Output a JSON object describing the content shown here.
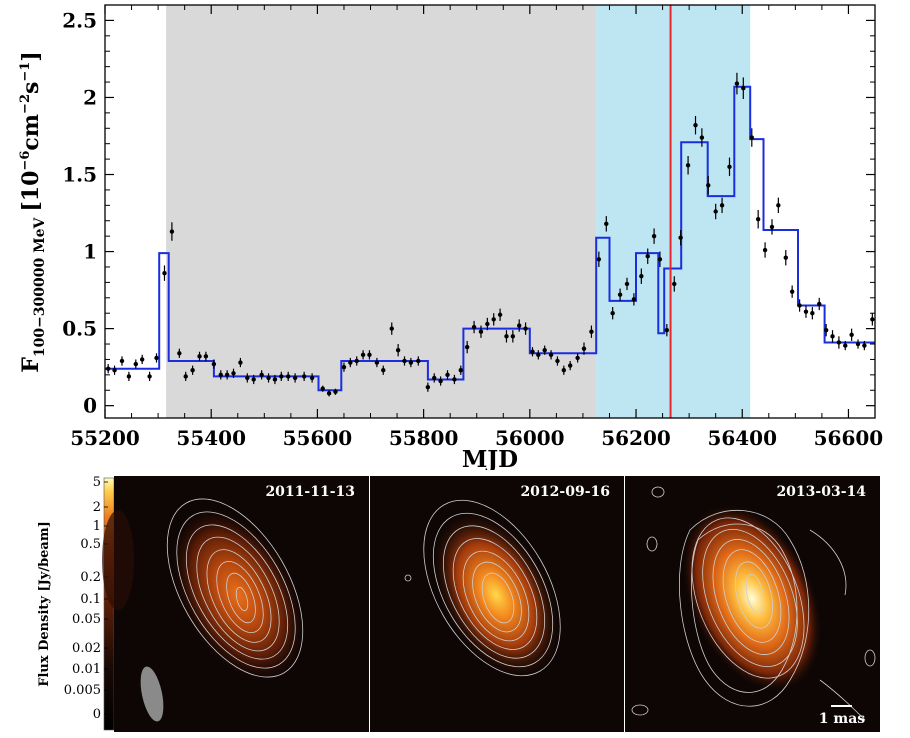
{
  "chart_data": [
    {
      "type": "line",
      "xlabel": "MJD",
      "ylabel_main": "F",
      "ylabel_sub": "100−300000 MeV",
      "ylabel_unit_pre": "[10",
      "ylabel_unit_exp1": "−6",
      "ylabel_unit_mid": "cm",
      "ylabel_unit_exp2": "−2",
      "ylabel_unit_s": "s",
      "ylabel_unit_exp3": "−1",
      "ylabel_unit_post": "]",
      "xlim": [
        55200,
        56650
      ],
      "ylim": [
        -0.08,
        2.6
      ],
      "xticks": [
        55200,
        55400,
        55600,
        55800,
        56000,
        56200,
        56400,
        56600
      ],
      "yticks": [
        0,
        0.5,
        1,
        1.5,
        2,
        2.5
      ],
      "ytick_labels": [
        "0",
        "0.5",
        "1",
        "1.5",
        "2",
        "2.5"
      ],
      "shaded_regions": [
        {
          "x0": 55315,
          "x1": 56125,
          "color": "#d9d9d9"
        },
        {
          "x0": 56125,
          "x1": 56415,
          "color": "#bde5f2"
        }
      ],
      "vline": {
        "x": 56265,
        "color": "#e8262b"
      },
      "points": [
        [
          55206,
          0.24,
          0.03
        ],
        [
          55218,
          0.23,
          0.03
        ],
        [
          55232,
          0.29,
          0.03
        ],
        [
          55245,
          0.19,
          0.03
        ],
        [
          55258,
          0.27,
          0.03
        ],
        [
          55270,
          0.3,
          0.03
        ],
        [
          55284,
          0.19,
          0.03
        ],
        [
          55297,
          0.31,
          0.03
        ],
        [
          55312,
          0.86,
          0.05
        ],
        [
          55326,
          1.13,
          0.06
        ],
        [
          55340,
          0.34,
          0.03
        ],
        [
          55352,
          0.19,
          0.03
        ],
        [
          55365,
          0.23,
          0.03
        ],
        [
          55378,
          0.32,
          0.03
        ],
        [
          55390,
          0.32,
          0.03
        ],
        [
          55405,
          0.27,
          0.03
        ],
        [
          55418,
          0.2,
          0.03
        ],
        [
          55430,
          0.2,
          0.03
        ],
        [
          55442,
          0.21,
          0.03
        ],
        [
          55455,
          0.28,
          0.03
        ],
        [
          55468,
          0.18,
          0.03
        ],
        [
          55480,
          0.17,
          0.03
        ],
        [
          55495,
          0.2,
          0.03
        ],
        [
          55508,
          0.18,
          0.03
        ],
        [
          55520,
          0.17,
          0.03
        ],
        [
          55532,
          0.19,
          0.03
        ],
        [
          55545,
          0.19,
          0.03
        ],
        [
          55558,
          0.18,
          0.03
        ],
        [
          55575,
          0.19,
          0.03
        ],
        [
          55590,
          0.18,
          0.03
        ],
        [
          55610,
          0.11,
          0.02
        ],
        [
          55622,
          0.08,
          0.02
        ],
        [
          55634,
          0.09,
          0.02
        ],
        [
          55650,
          0.25,
          0.03
        ],
        [
          55662,
          0.28,
          0.03
        ],
        [
          55674,
          0.29,
          0.03
        ],
        [
          55686,
          0.33,
          0.03
        ],
        [
          55698,
          0.33,
          0.03
        ],
        [
          55712,
          0.28,
          0.03
        ],
        [
          55724,
          0.23,
          0.03
        ],
        [
          55740,
          0.5,
          0.04
        ],
        [
          55752,
          0.36,
          0.04
        ],
        [
          55764,
          0.29,
          0.03
        ],
        [
          55776,
          0.28,
          0.03
        ],
        [
          55790,
          0.29,
          0.03
        ],
        [
          55808,
          0.12,
          0.03
        ],
        [
          55820,
          0.18,
          0.03
        ],
        [
          55832,
          0.16,
          0.03
        ],
        [
          55845,
          0.2,
          0.03
        ],
        [
          55858,
          0.17,
          0.03
        ],
        [
          55870,
          0.23,
          0.03
        ],
        [
          55882,
          0.38,
          0.04
        ],
        [
          55895,
          0.51,
          0.04
        ],
        [
          55908,
          0.48,
          0.04
        ],
        [
          55920,
          0.53,
          0.04
        ],
        [
          55932,
          0.56,
          0.04
        ],
        [
          55944,
          0.59,
          0.04
        ],
        [
          55956,
          0.45,
          0.04
        ],
        [
          55968,
          0.45,
          0.04
        ],
        [
          55980,
          0.52,
          0.04
        ],
        [
          55992,
          0.5,
          0.04
        ],
        [
          56005,
          0.35,
          0.03
        ],
        [
          56016,
          0.33,
          0.03
        ],
        [
          56028,
          0.36,
          0.03
        ],
        [
          56040,
          0.33,
          0.03
        ],
        [
          56052,
          0.29,
          0.03
        ],
        [
          56064,
          0.23,
          0.03
        ],
        [
          56076,
          0.26,
          0.03
        ],
        [
          56090,
          0.31,
          0.03
        ],
        [
          56102,
          0.37,
          0.04
        ],
        [
          56116,
          0.48,
          0.04
        ],
        [
          56130,
          0.95,
          0.05
        ],
        [
          56144,
          1.18,
          0.05
        ],
        [
          56156,
          0.6,
          0.04
        ],
        [
          56170,
          0.72,
          0.04
        ],
        [
          56183,
          0.79,
          0.04
        ],
        [
          56196,
          0.69,
          0.04
        ],
        [
          56210,
          0.84,
          0.05
        ],
        [
          56222,
          0.97,
          0.05
        ],
        [
          56234,
          1.1,
          0.05
        ],
        [
          56245,
          0.95,
          0.05
        ],
        [
          56258,
          0.49,
          0.04
        ],
        [
          56272,
          0.79,
          0.05
        ],
        [
          56284,
          1.09,
          0.05
        ],
        [
          56298,
          1.56,
          0.06
        ],
        [
          56312,
          1.82,
          0.06
        ],
        [
          56324,
          1.74,
          0.06
        ],
        [
          56336,
          1.43,
          0.06
        ],
        [
          56350,
          1.26,
          0.05
        ],
        [
          56362,
          1.3,
          0.05
        ],
        [
          56376,
          1.55,
          0.06
        ],
        [
          56390,
          2.09,
          0.07
        ],
        [
          56402,
          2.06,
          0.07
        ],
        [
          56418,
          1.74,
          0.06
        ],
        [
          56430,
          1.21,
          0.06
        ],
        [
          56443,
          1.01,
          0.05
        ],
        [
          56456,
          1.16,
          0.05
        ],
        [
          56468,
          1.3,
          0.05
        ],
        [
          56482,
          0.96,
          0.05
        ],
        [
          56494,
          0.74,
          0.04
        ],
        [
          56508,
          0.65,
          0.04
        ],
        [
          56520,
          0.61,
          0.04
        ],
        [
          56532,
          0.6,
          0.04
        ],
        [
          56545,
          0.66,
          0.04
        ],
        [
          56558,
          0.49,
          0.04
        ],
        [
          56570,
          0.45,
          0.04
        ],
        [
          56582,
          0.41,
          0.04
        ],
        [
          56594,
          0.39,
          0.03
        ],
        [
          56606,
          0.46,
          0.04
        ],
        [
          56618,
          0.4,
          0.03
        ],
        [
          56630,
          0.39,
          0.03
        ],
        [
          56645,
          0.56,
          0.04
        ]
      ],
      "step_series": [
        [
          55200,
          55302,
          0.24
        ],
        [
          55302,
          55320,
          0.99
        ],
        [
          55320,
          55405,
          0.29
        ],
        [
          55405,
          55602,
          0.19
        ],
        [
          55602,
          55645,
          0.1
        ],
        [
          55645,
          55808,
          0.29
        ],
        [
          55808,
          55875,
          0.17
        ],
        [
          55875,
          56000,
          0.5
        ],
        [
          56000,
          56125,
          0.34
        ],
        [
          56125,
          56150,
          1.09
        ],
        [
          56150,
          56200,
          0.68
        ],
        [
          56200,
          56242,
          0.99
        ],
        [
          56242,
          56253,
          0.47
        ],
        [
          56253,
          56285,
          0.89
        ],
        [
          56285,
          56335,
          1.71
        ],
        [
          56335,
          56385,
          1.36
        ],
        [
          56385,
          56415,
          2.07
        ],
        [
          56415,
          56440,
          1.73
        ],
        [
          56440,
          56505,
          1.14
        ],
        [
          56505,
          56555,
          0.65
        ],
        [
          56555,
          56650,
          0.41
        ]
      ]
    },
    {
      "type": "heatmap",
      "colorbar_label": "Flux Density [Jy/beam]",
      "colorbar_ticks": [
        "5",
        "2",
        "1",
        "0.5",
        "0.2",
        "0.1",
        "0.05",
        "0.02",
        "0.01",
        "0.005",
        "0"
      ],
      "panels": [
        {
          "date": "2011-11-13",
          "peak_level": 0.55
        },
        {
          "date": "2012-09-16",
          "peak_level": 0.8
        },
        {
          "date": "2013-03-14",
          "peak_level": 1.0
        }
      ],
      "scale_bar_label": "1 mas"
    }
  ]
}
